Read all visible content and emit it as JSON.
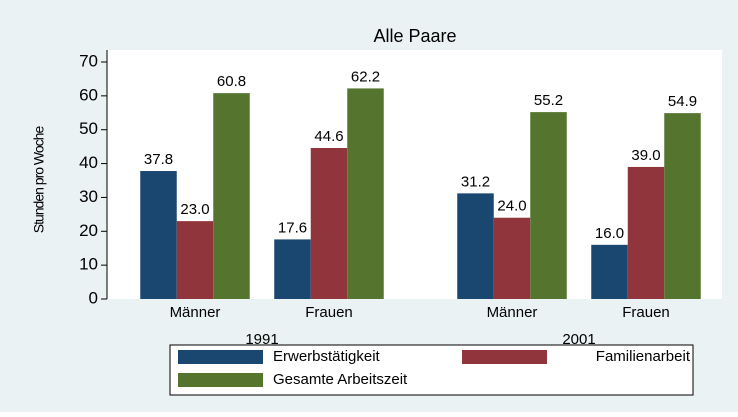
{
  "chart_data": {
    "type": "bar",
    "title": "Alle Paare",
    "y_label": "Stunden pro Woche",
    "categories": [
      "Männer",
      "Frauen",
      "Männer",
      "Frauen"
    ],
    "group_labels": [
      "1991",
      "2001"
    ],
    "series": [
      {
        "name": "Erwerbstätigkeit",
        "color": "#1a476f",
        "values": [
          37.8,
          17.6,
          31.2,
          16.0
        ],
        "value_labels": [
          "37.8",
          "17.6",
          "31.2",
          "16.0"
        ]
      },
      {
        "name": "Familienarbeit",
        "color": "#90353b",
        "values": [
          23.0,
          44.6,
          24.0,
          39.0
        ],
        "value_labels": [
          "23.0",
          "44.6",
          "24.0",
          "39.0"
        ]
      },
      {
        "name": "Gesamte Arbeitszeit",
        "color": "#55752f",
        "values": [
          60.8,
          62.2,
          55.2,
          54.9
        ],
        "value_labels": [
          "60.8",
          "62.2",
          "55.2",
          "54.9"
        ]
      }
    ],
    "ylim": [
      0,
      70
    ],
    "yticks": [
      0,
      10,
      20,
      30,
      40,
      50,
      60,
      70
    ]
  }
}
